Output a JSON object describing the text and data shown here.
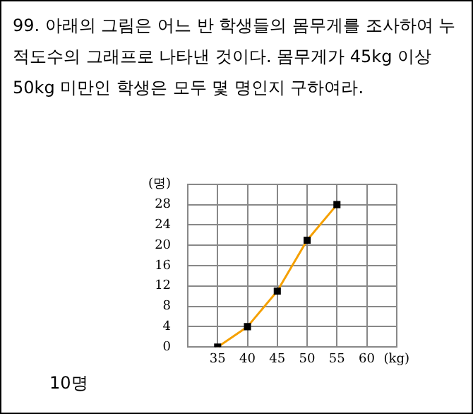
{
  "chart_data": {
    "type": "line",
    "title": "99. 아래의 그림은 어느 반 학생들의 몸무게를 조사하여 누적도수의 그래프로 나타낸 것이다. 몸무게가 45kg 이상 50kg 미만인 학생은 모두 몇 명인지 구하여라.",
    "x": [
      35,
      40,
      45,
      50,
      55
    ],
    "series": [
      {
        "color": "#f5a000",
        "values": [
          0,
          4,
          11,
          21,
          28
        ]
      }
    ],
    "xlim": [
      30,
      65
    ],
    "xticks": [
      35,
      40,
      45,
      50,
      55,
      60,
      {
        "value": 65,
        "label": "(kg)"
      }
    ],
    "ylim": [
      0,
      32
    ],
    "yticks": [
      0,
      4,
      8,
      12,
      16,
      20,
      24,
      28,
      {
        "value": 32,
        "label": "(명)"
      }
    ],
    "grid": true,
    "legend": false,
    "marker": "square",
    "line_style": "solid",
    "annotations": [
      "10명"
    ]
  }
}
